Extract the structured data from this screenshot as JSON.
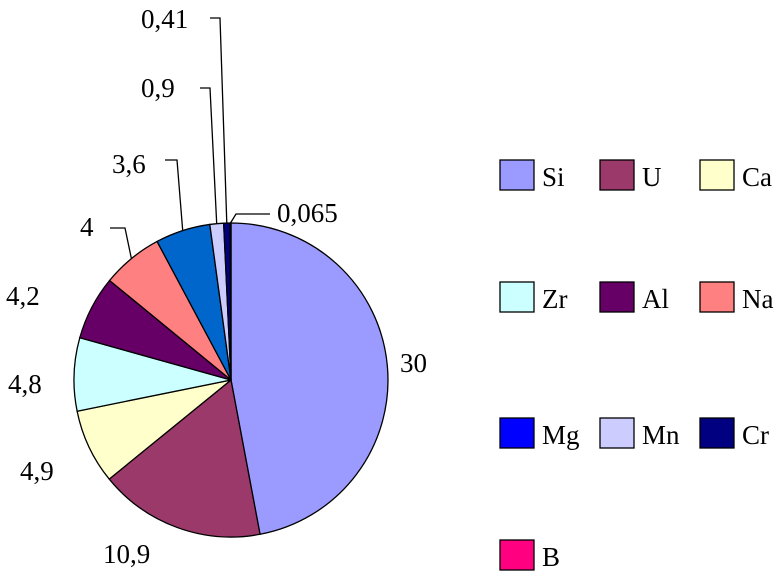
{
  "chart_data": {
    "type": "pie",
    "title": "",
    "legend_position": "right",
    "slices": [
      {
        "name": "Si",
        "value": 30,
        "label": "30",
        "color": "#9b9bff"
      },
      {
        "name": "U",
        "value": 10.9,
        "label": "10,9",
        "color": "#9b3a6a"
      },
      {
        "name": "Ca",
        "value": 4.9,
        "label": "4,9",
        "color": "#ffffcc"
      },
      {
        "name": "Zr",
        "value": 4.8,
        "label": "4,8",
        "color": "#ccffff"
      },
      {
        "name": "Al",
        "value": 4.2,
        "label": "4,2",
        "color": "#660066"
      },
      {
        "name": "Na",
        "value": 4,
        "label": "4",
        "color": "#ff8080"
      },
      {
        "name": "Mg",
        "value": 3.6,
        "label": "3,6",
        "color": "#0066cc"
      },
      {
        "name": "Mn",
        "value": 0.9,
        "label": "0,9",
        "color": "#ccccff"
      },
      {
        "name": "Cr",
        "value": 0.41,
        "label": "0,41",
        "color": "#000080"
      },
      {
        "name": "B",
        "value": 0.065,
        "label": "0,065",
        "color": "#ff00ff"
      }
    ],
    "legend": [
      {
        "name": "Si",
        "color": "#9b9bff"
      },
      {
        "name": "U",
        "color": "#9b3a6a"
      },
      {
        "name": "Ca",
        "color": "#ffffcc"
      },
      {
        "name": "Zr",
        "color": "#ccffff"
      },
      {
        "name": "Al",
        "color": "#660066"
      },
      {
        "name": "Na",
        "color": "#ff8080"
      },
      {
        "name": "Mg",
        "color": "#0000ff"
      },
      {
        "name": "Mn",
        "color": "#ccccff"
      },
      {
        "name": "Cr",
        "color": "#000080"
      },
      {
        "name": "B",
        "color": "#ff0080"
      }
    ]
  }
}
